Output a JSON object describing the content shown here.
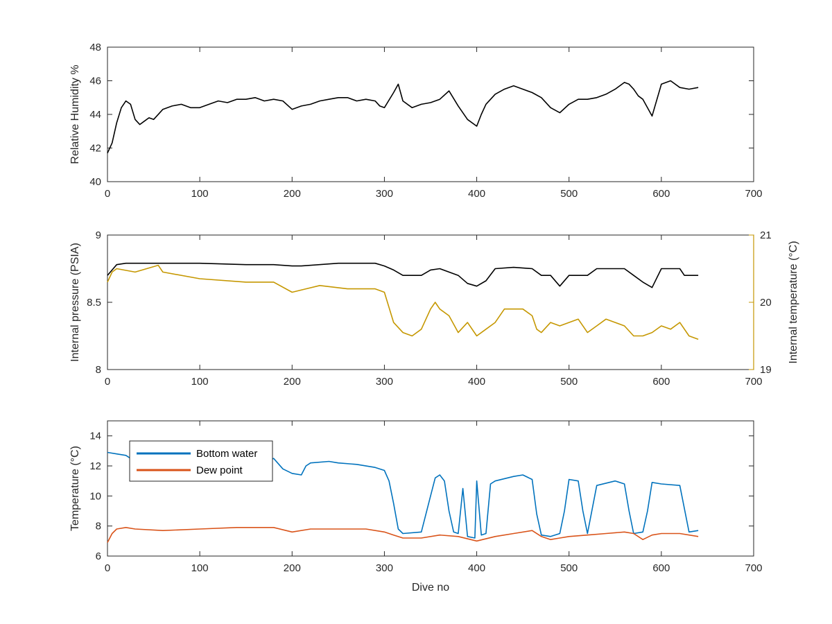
{
  "colors": {
    "humidity": "#000000",
    "pressure": "#000000",
    "internal_temp": "#C59700",
    "bottom_water": "#0072BD",
    "dew_point": "#D95319",
    "axis": "#262626"
  },
  "chart_data": [
    {
      "type": "line",
      "xlabel": "",
      "ylabel": "Relative Humidity %",
      "xlim": [
        0,
        700
      ],
      "ylim": [
        40,
        48
      ],
      "xticks": [
        0,
        100,
        200,
        300,
        400,
        500,
        600,
        700
      ],
      "yticks": [
        40,
        42,
        44,
        46,
        48
      ],
      "grid": false,
      "series": [
        {
          "color": "#000000",
          "x": [
            0,
            5,
            10,
            15,
            20,
            25,
            30,
            35,
            40,
            45,
            50,
            60,
            70,
            80,
            90,
            100,
            110,
            120,
            130,
            140,
            150,
            160,
            170,
            180,
            190,
            200,
            210,
            220,
            230,
            240,
            250,
            260,
            270,
            280,
            290,
            295,
            300,
            310,
            315,
            320,
            330,
            340,
            350,
            360,
            370,
            380,
            390,
            400,
            405,
            410,
            420,
            430,
            440,
            450,
            460,
            470,
            480,
            490,
            500,
            510,
            520,
            530,
            540,
            550,
            560,
            565,
            570,
            575,
            580,
            590,
            600,
            610,
            620,
            630,
            640
          ],
          "y": [
            41.7,
            42.3,
            43.5,
            44.4,
            44.8,
            44.6,
            43.7,
            43.4,
            43.6,
            43.8,
            43.7,
            44.3,
            44.5,
            44.6,
            44.4,
            44.4,
            44.6,
            44.8,
            44.7,
            44.9,
            44.9,
            45.0,
            44.8,
            44.9,
            44.8,
            44.3,
            44.5,
            44.6,
            44.8,
            44.9,
            45.0,
            45.0,
            44.8,
            44.9,
            44.8,
            44.5,
            44.4,
            45.3,
            45.8,
            44.8,
            44.4,
            44.6,
            44.7,
            44.9,
            45.4,
            44.5,
            43.7,
            43.3,
            44.0,
            44.6,
            45.2,
            45.5,
            45.7,
            45.5,
            45.3,
            45.0,
            44.4,
            44.1,
            44.6,
            44.9,
            44.9,
            45.0,
            45.2,
            45.5,
            45.9,
            45.8,
            45.5,
            45.1,
            44.9,
            43.9,
            45.8,
            46.0,
            45.6,
            45.5,
            45.6
          ]
        }
      ]
    },
    {
      "type": "line",
      "xlabel": "",
      "ylabel": "Internal pressure (PSIA)",
      "y2label": "Internal temperature (°C)",
      "xlim": [
        0,
        700
      ],
      "ylim": [
        8,
        9
      ],
      "y2lim": [
        19,
        21
      ],
      "xticks": [
        0,
        100,
        200,
        300,
        400,
        500,
        600,
        700
      ],
      "yticks": [
        8,
        8.5,
        9
      ],
      "y2ticks": [
        19,
        20,
        21
      ],
      "grid": false,
      "series": [
        {
          "axis": "left",
          "color": "#000000",
          "x": [
            0,
            5,
            10,
            20,
            50,
            100,
            150,
            180,
            200,
            210,
            250,
            290,
            300,
            310,
            320,
            340,
            350,
            360,
            380,
            390,
            400,
            410,
            420,
            440,
            460,
            470,
            480,
            490,
            500,
            520,
            530,
            560,
            570,
            580,
            590,
            600,
            620,
            625,
            630,
            640
          ],
          "y": [
            8.7,
            8.74,
            8.78,
            8.79,
            8.79,
            8.79,
            8.78,
            8.78,
            8.77,
            8.77,
            8.79,
            8.79,
            8.77,
            8.74,
            8.7,
            8.7,
            8.74,
            8.75,
            8.7,
            8.64,
            8.62,
            8.66,
            8.75,
            8.76,
            8.75,
            8.7,
            8.7,
            8.62,
            8.7,
            8.7,
            8.75,
            8.75,
            8.7,
            8.65,
            8.61,
            8.75,
            8.75,
            8.7,
            8.7,
            8.7
          ]
        },
        {
          "axis": "right",
          "color": "#C59700",
          "x": [
            0,
            5,
            10,
            30,
            55,
            60,
            100,
            150,
            180,
            200,
            215,
            230,
            260,
            290,
            300,
            310,
            320,
            330,
            340,
            350,
            355,
            360,
            370,
            380,
            390,
            400,
            410,
            420,
            430,
            450,
            460,
            465,
            470,
            480,
            490,
            500,
            510,
            520,
            530,
            540,
            550,
            560,
            570,
            580,
            590,
            600,
            610,
            620,
            630,
            640
          ],
          "y": [
            20.3,
            20.45,
            20.5,
            20.45,
            20.55,
            20.45,
            20.35,
            20.3,
            20.3,
            20.15,
            20.2,
            20.25,
            20.2,
            20.2,
            20.15,
            19.7,
            19.55,
            19.5,
            19.6,
            19.9,
            20.0,
            19.9,
            19.8,
            19.55,
            19.7,
            19.5,
            19.6,
            19.7,
            19.9,
            19.9,
            19.8,
            19.6,
            19.55,
            19.7,
            19.65,
            19.7,
            19.75,
            19.55,
            19.65,
            19.75,
            19.7,
            19.65,
            19.5,
            19.5,
            19.55,
            19.65,
            19.6,
            19.7,
            19.5,
            19.45
          ]
        }
      ]
    },
    {
      "type": "line",
      "xlabel": "Dive no",
      "ylabel": "Temperature (°C)",
      "xlim": [
        0,
        700
      ],
      "ylim": [
        6,
        15
      ],
      "xticks": [
        0,
        100,
        200,
        300,
        400,
        500,
        600,
        700
      ],
      "yticks": [
        6,
        8,
        10,
        12,
        14
      ],
      "grid": false,
      "legend": "top-left",
      "series": [
        {
          "name": "Bottom water",
          "color": "#0072BD",
          "x": [
            0,
            10,
            20,
            25,
            40,
            60,
            100,
            120,
            150,
            170,
            180,
            190,
            200,
            210,
            215,
            220,
            240,
            250,
            270,
            290,
            300,
            305,
            310,
            315,
            320,
            340,
            350,
            355,
            360,
            365,
            370,
            375,
            380,
            385,
            390,
            398,
            400,
            405,
            410,
            415,
            420,
            440,
            450,
            460,
            465,
            470,
            480,
            490,
            495,
            500,
            510,
            515,
            520,
            530,
            550,
            560,
            565,
            570,
            580,
            585,
            590,
            600,
            620,
            630,
            640
          ],
          "y": [
            12.9,
            12.8,
            12.7,
            12.5,
            12.4,
            12.4,
            12.5,
            12.4,
            12.4,
            12.3,
            12.5,
            11.8,
            11.5,
            11.4,
            12.0,
            12.2,
            12.3,
            12.2,
            12.1,
            11.9,
            11.7,
            11.0,
            9.5,
            7.8,
            7.5,
            7.6,
            10.0,
            11.2,
            11.4,
            11.0,
            9.0,
            7.6,
            7.5,
            10.5,
            7.3,
            7.2,
            11.0,
            7.4,
            7.5,
            10.8,
            11.0,
            11.3,
            11.4,
            11.1,
            8.8,
            7.4,
            7.3,
            7.5,
            9.0,
            11.1,
            11.0,
            9.0,
            7.5,
            10.7,
            11.0,
            10.8,
            9.0,
            7.5,
            7.6,
            9.0,
            10.9,
            10.8,
            10.7,
            7.6,
            7.7
          ]
        },
        {
          "name": "Dew point",
          "color": "#D95319",
          "x": [
            0,
            5,
            10,
            20,
            30,
            60,
            100,
            140,
            180,
            200,
            220,
            250,
            280,
            300,
            310,
            320,
            340,
            360,
            380,
            400,
            420,
            440,
            460,
            470,
            480,
            490,
            500,
            520,
            540,
            560,
            570,
            580,
            590,
            600,
            620,
            640
          ],
          "y": [
            6.9,
            7.5,
            7.8,
            7.9,
            7.8,
            7.7,
            7.8,
            7.9,
            7.9,
            7.6,
            7.8,
            7.8,
            7.8,
            7.6,
            7.4,
            7.2,
            7.2,
            7.4,
            7.3,
            7.0,
            7.3,
            7.5,
            7.7,
            7.3,
            7.1,
            7.2,
            7.3,
            7.4,
            7.5,
            7.6,
            7.5,
            7.1,
            7.4,
            7.5,
            7.5,
            7.3
          ]
        }
      ]
    }
  ]
}
